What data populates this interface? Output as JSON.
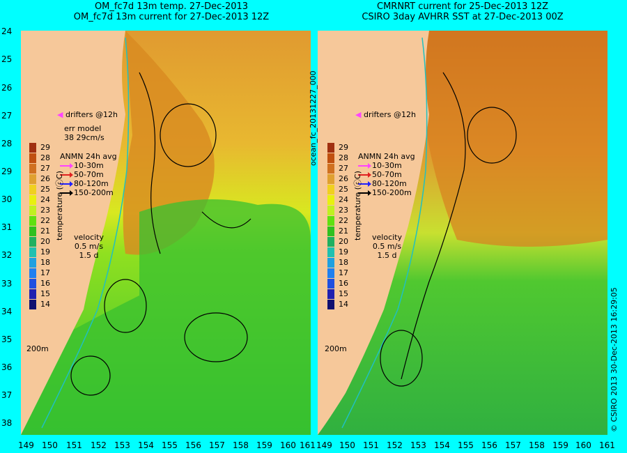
{
  "left_panel": {
    "title_line1": "OM_fc7d 13m temp. 27-Dec-2013",
    "title_line2": "OM_fc7d 13m current for 27-Dec-2013 12Z",
    "err_model_label": "err model",
    "err_model_value": "38 29cm/s"
  },
  "right_panel": {
    "title_line1": "CMRNRT current for 25-Dec-2013 12Z",
    "title_line2": "CSIRO 3day AVHRR SST at 27-Dec-2013 00Z"
  },
  "side_label": "ocean_fc_20131227_000",
  "credit": "© CSIRO 2013   30-Dec-2013 16:29:05",
  "drifters_label": "drifters @12h",
  "anmn": {
    "title": "ANMN 24h avg",
    "items": [
      {
        "label": "10-30m",
        "color": "#ff44ff"
      },
      {
        "label": "50-70m",
        "color": "#e02020"
      },
      {
        "label": "80-120m",
        "color": "#2020ff"
      },
      {
        "label": "150-200m",
        "color": "#000000"
      }
    ]
  },
  "velocity": {
    "label": "velocity",
    "speed": "0.5 m/s",
    "days": "1.5 d"
  },
  "isobath_label": "200m",
  "colorbar": {
    "title": "temperature (ⓒC)",
    "ticks": [
      "29",
      "28",
      "27",
      "26",
      "25",
      "24",
      "23",
      "22",
      "21",
      "20",
      "19",
      "18",
      "17",
      "16",
      "15",
      "14"
    ],
    "colors": [
      "#a03010",
      "#c05010",
      "#d07020",
      "#e0a030",
      "#f0d020",
      "#e8f010",
      "#c0f020",
      "#60e010",
      "#30c020",
      "#20b060",
      "#20c0b0",
      "#20a0e0",
      "#2080f0",
      "#2050e0",
      "#2020b0",
      "#101070"
    ]
  },
  "axes": {
    "y_ticks": [
      "24",
      "25",
      "26",
      "27",
      "28",
      "29",
      "30",
      "31",
      "32",
      "33",
      "34",
      "35",
      "36",
      "37",
      "38"
    ],
    "x_ticks": [
      "149",
      "150",
      "151",
      "152",
      "153",
      "154",
      "155",
      "156",
      "157",
      "158",
      "159",
      "160",
      "161"
    ]
  },
  "colors": {
    "background": "#00ffff",
    "land": "#f6c89a",
    "ocean_warm": "#d8902a",
    "ocean_mid": "#c8e030",
    "ocean_cool": "#40c030"
  }
}
